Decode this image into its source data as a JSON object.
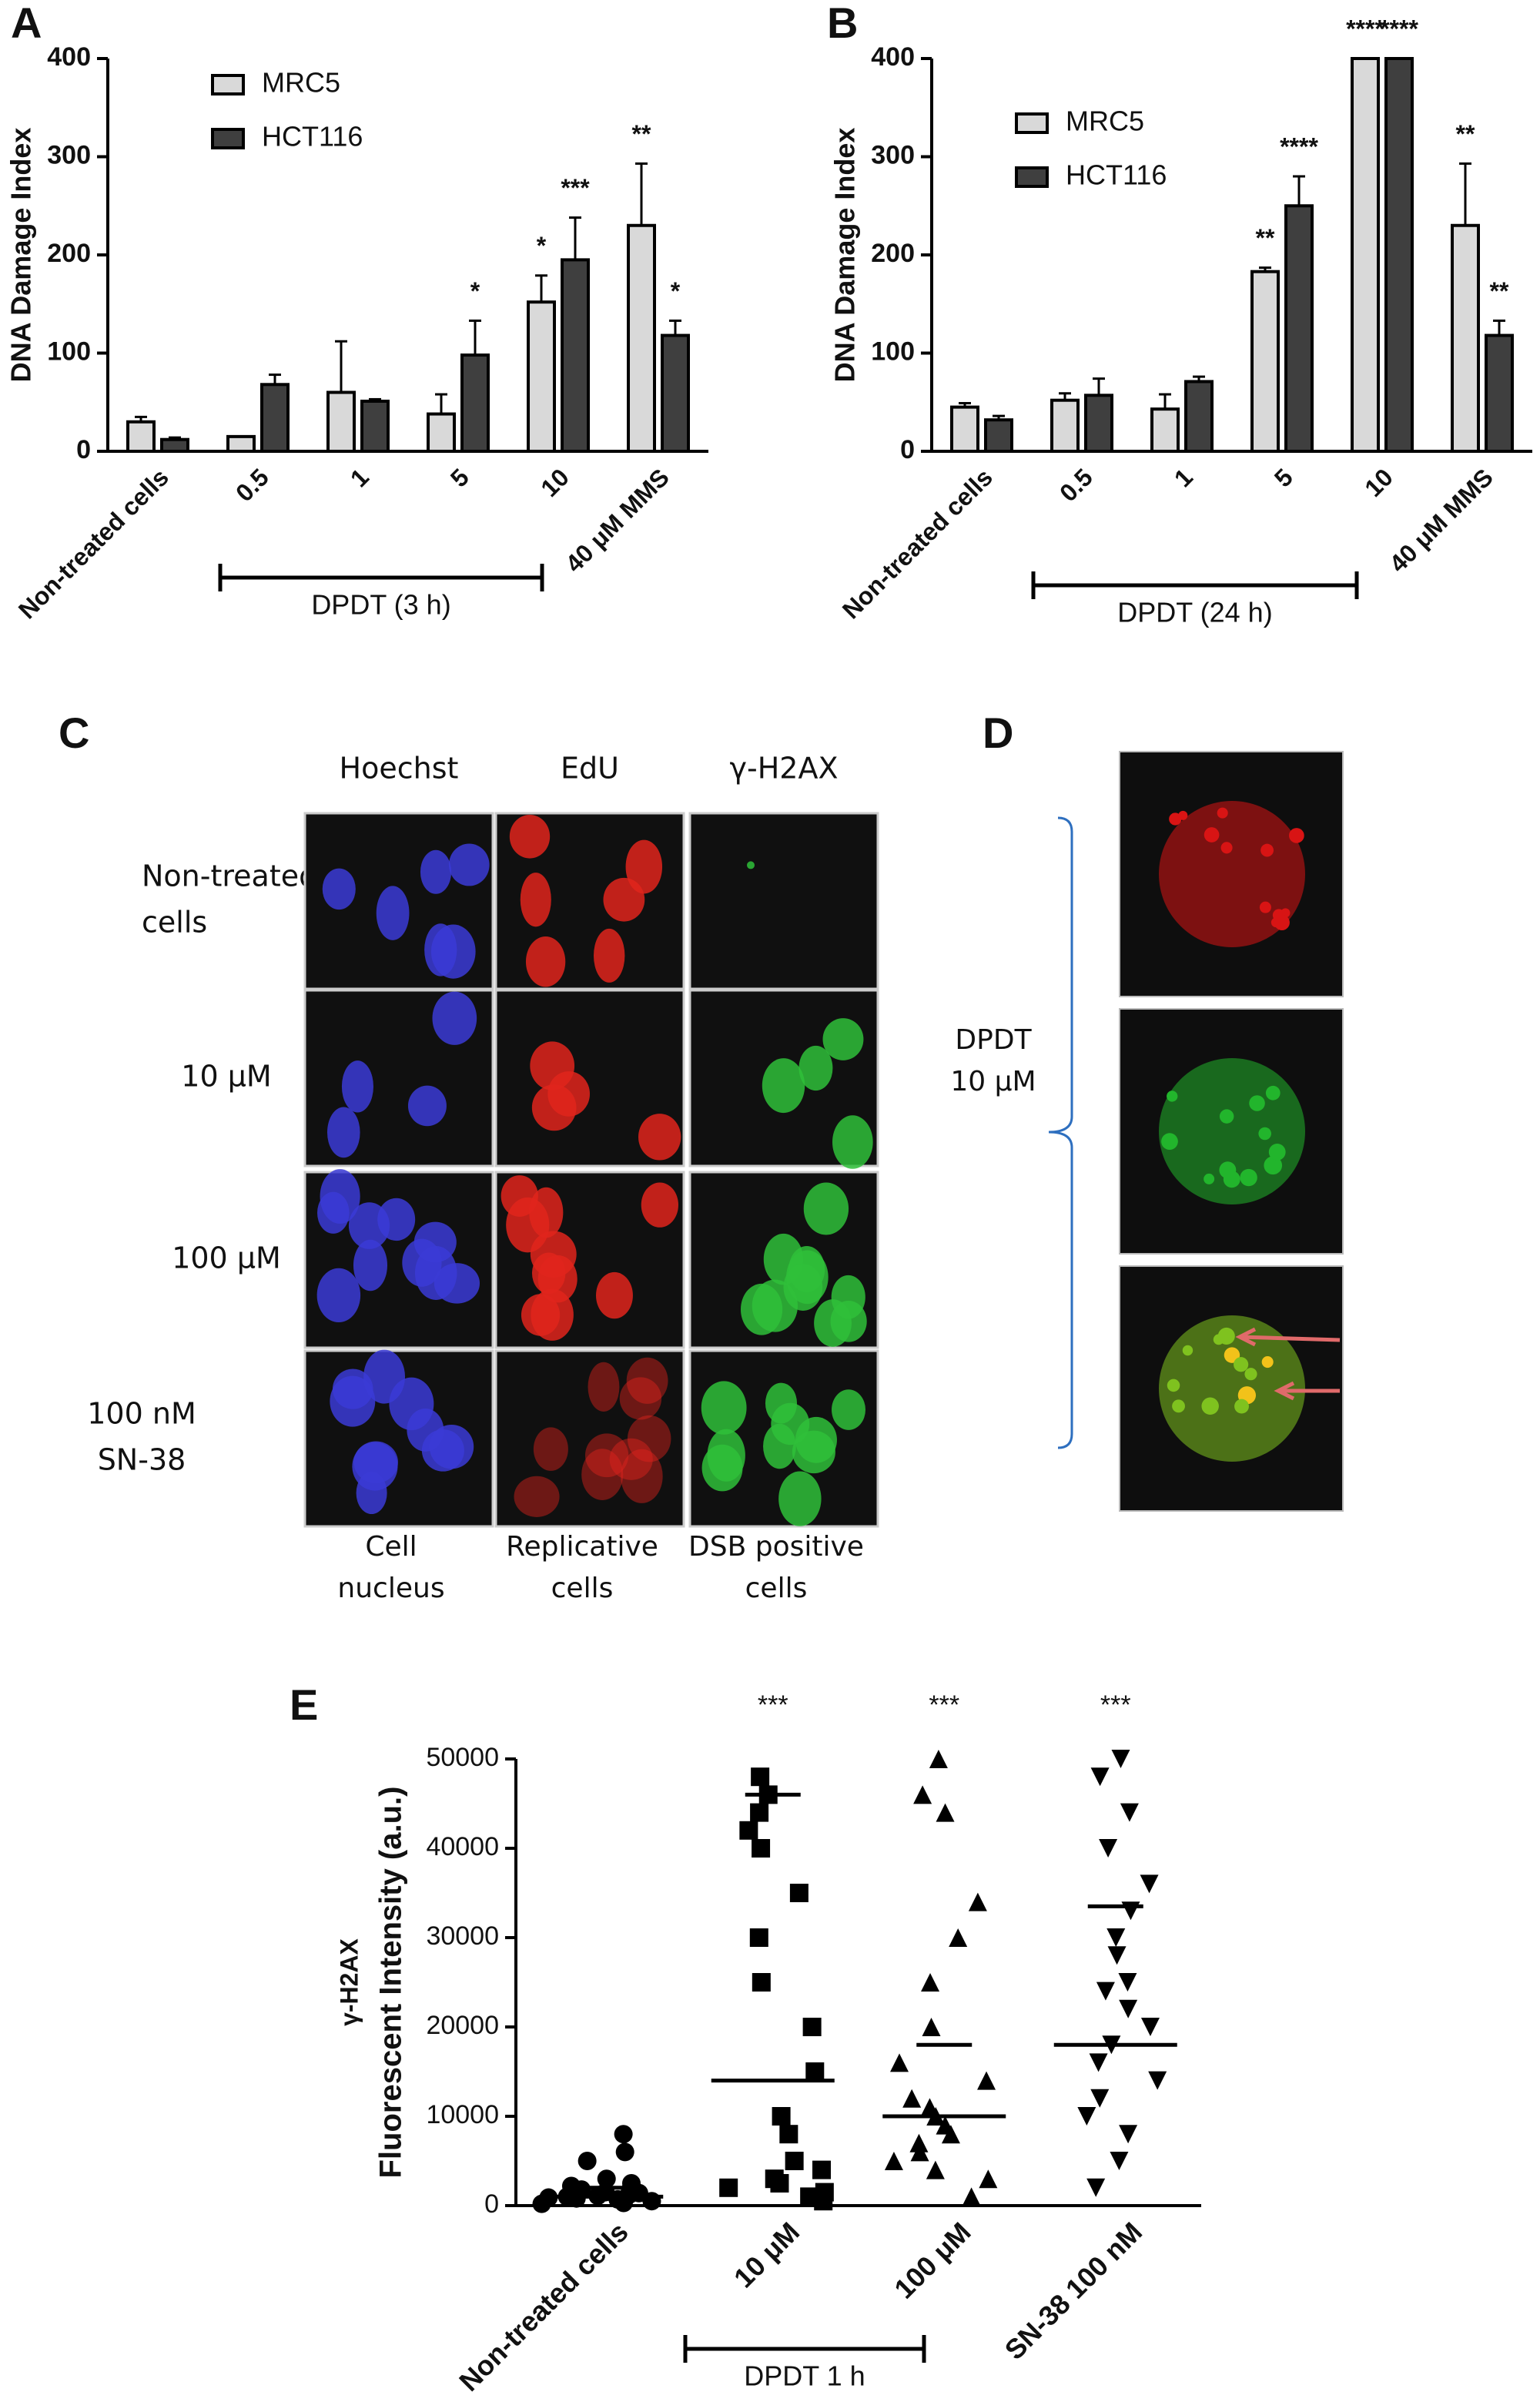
{
  "chart_data": [
    {
      "type": "bar",
      "panel_label": "A",
      "y_label": "DNA Damage Index",
      "categories": [
        "Non-treated cells",
        "0.5",
        "1",
        "5",
        "10",
        "40 μM MMS"
      ],
      "series": [
        {
          "name": "MRC5",
          "color": "#d9d9d9",
          "values": [
            30,
            15,
            60,
            38,
            152,
            230
          ],
          "errors": [
            5,
            0,
            52,
            20,
            27,
            63
          ],
          "significance": [
            null,
            null,
            null,
            null,
            "*",
            "**"
          ]
        },
        {
          "name": "HCT116",
          "color": "#3f3f3f",
          "values": [
            12,
            68,
            51,
            98,
            195,
            118
          ],
          "errors": [
            2,
            10,
            2,
            35,
            43,
            15
          ],
          "significance": [
            null,
            null,
            null,
            "*",
            "***",
            "*"
          ]
        }
      ],
      "ylim": [
        0,
        400
      ],
      "yticks": [
        0,
        100,
        200,
        300,
        400
      ],
      "legend": "upper-left",
      "group_label": "DPDT (3 h)"
    },
    {
      "type": "bar",
      "panel_label": "B",
      "y_label": "DNA Damage Index",
      "categories": [
        "Non-treated cells",
        "0.5",
        "1",
        "5",
        "10",
        "40 μM MMS"
      ],
      "series": [
        {
          "name": "MRC5",
          "color": "#d9d9d9",
          "values": [
            45,
            52,
            43,
            183,
            400,
            230
          ],
          "errors": [
            4,
            7,
            15,
            4,
            0,
            63
          ],
          "significance": [
            null,
            null,
            null,
            "**",
            "****",
            "**"
          ]
        },
        {
          "name": "HCT116",
          "color": "#3f3f3f",
          "values": [
            32,
            57,
            71,
            250,
            400,
            118
          ],
          "errors": [
            4,
            17,
            5,
            30,
            0,
            15
          ],
          "significance": [
            null,
            null,
            null,
            "****",
            "****",
            "**"
          ]
        }
      ],
      "ylim": [
        0,
        400
      ],
      "yticks": [
        0,
        100,
        200,
        300,
        400
      ],
      "legend": "upper-left",
      "group_label": "DPDT (24 h)"
    },
    {
      "type": "dotplot",
      "panel_label": "E",
      "y_label": [
        "γ-H2AX",
        "Fluorescent Intensity (a.u.)"
      ],
      "categories": [
        "Non-treated cells",
        "10 μM",
        "100 μM",
        "SN-38 100 nM"
      ],
      "markers": [
        "circle",
        "square",
        "triangle-up",
        "triangle-down"
      ],
      "color": "#000000",
      "values": [
        [
          200,
          500,
          800,
          1000,
          1200,
          1500,
          1800,
          2000,
          2500,
          3000,
          300,
          700,
          1400,
          2200,
          5000,
          6000,
          8000,
          900,
          400,
          1100
        ],
        [
          500,
          1000,
          2000,
          3000,
          4000,
          5000,
          8000,
          10000,
          15000,
          20000,
          25000,
          30000,
          35000,
          40000,
          42000,
          44000,
          46000,
          48000,
          1500,
          2500
        ],
        [
          1000,
          3000,
          5000,
          7000,
          8000,
          9000,
          10000,
          12000,
          14000,
          16000,
          20000,
          25000,
          30000,
          34000,
          44000,
          46000,
          50000,
          6000,
          11000,
          4000
        ],
        [
          2000,
          5000,
          8000,
          10000,
          14000,
          18000,
          20000,
          22000,
          25000,
          28000,
          30000,
          33000,
          36000,
          40000,
          44000,
          48000,
          50000,
          12000,
          16000,
          24000
        ]
      ],
      "means": [
        1000,
        14000,
        10000,
        18000
      ],
      "sd": [
        1000,
        32000,
        8000,
        15500
      ],
      "significance": [
        null,
        "***",
        "***",
        "***"
      ],
      "ylim": [
        0,
        50000
      ],
      "yticks": [
        0,
        10000,
        20000,
        30000,
        40000,
        50000
      ],
      "group_label": "DPDT 1 h"
    }
  ],
  "panel_c": {
    "panel_label": "C",
    "column_titles": [
      "Hoechst",
      "EdU",
      "γ-H2AX"
    ],
    "row_labels": [
      [
        "Non-treated",
        "cells"
      ],
      [
        "10 μM"
      ],
      [
        "100 μM"
      ],
      [
        "100 nM",
        "SN-38"
      ]
    ],
    "column_footers": [
      [
        "Cell",
        "nucleus"
      ],
      [
        "Replicative",
        "cells"
      ],
      [
        "DSB positive",
        "cells"
      ]
    ]
  },
  "panel_d": {
    "panel_label": "D",
    "label": [
      "DPDT",
      "10 μM"
    ]
  }
}
